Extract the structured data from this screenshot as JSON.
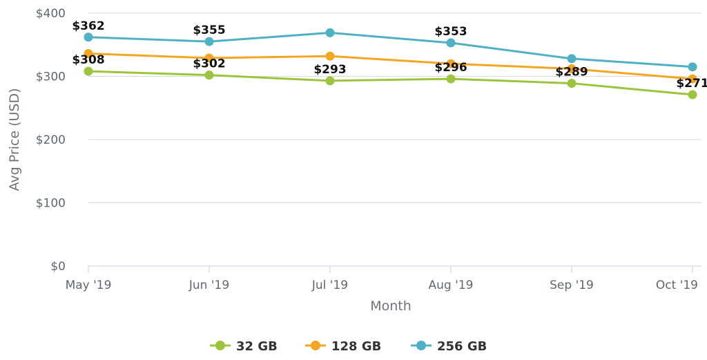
{
  "chart_data": {
    "type": "line",
    "categories": [
      "May '19",
      "Jun '19",
      "Jul '19",
      "Aug '19",
      "Sep '19",
      "Oct '19"
    ],
    "series": [
      {
        "name": "32 GB",
        "color": "#9bc53d",
        "values": [
          308,
          302,
          293,
          296,
          289,
          271
        ],
        "labels": [
          "$308",
          "$302",
          "$293",
          "$296",
          "$289",
          "$271"
        ]
      },
      {
        "name": "128 GB",
        "color": "#f4a622",
        "values": [
          336,
          329,
          332,
          320,
          312,
          296
        ],
        "labels": [
          "",
          "",
          "",
          "",
          "",
          ""
        ]
      },
      {
        "name": "256 GB",
        "color": "#4fb1c4",
        "values": [
          362,
          355,
          369,
          353,
          328,
          315
        ],
        "labels": [
          "$362",
          "$355",
          "",
          "$353",
          "",
          ""
        ]
      }
    ],
    "xlabel": "Month",
    "ylabel": "Avg Price (USD)",
    "ylim": [
      0,
      400
    ],
    "yticks": [
      "$0",
      "$100",
      "$200",
      "$300",
      "$400"
    ],
    "ytick_values": [
      0,
      100,
      200,
      300,
      400
    ],
    "grid": true,
    "legend_position": "bottom"
  }
}
